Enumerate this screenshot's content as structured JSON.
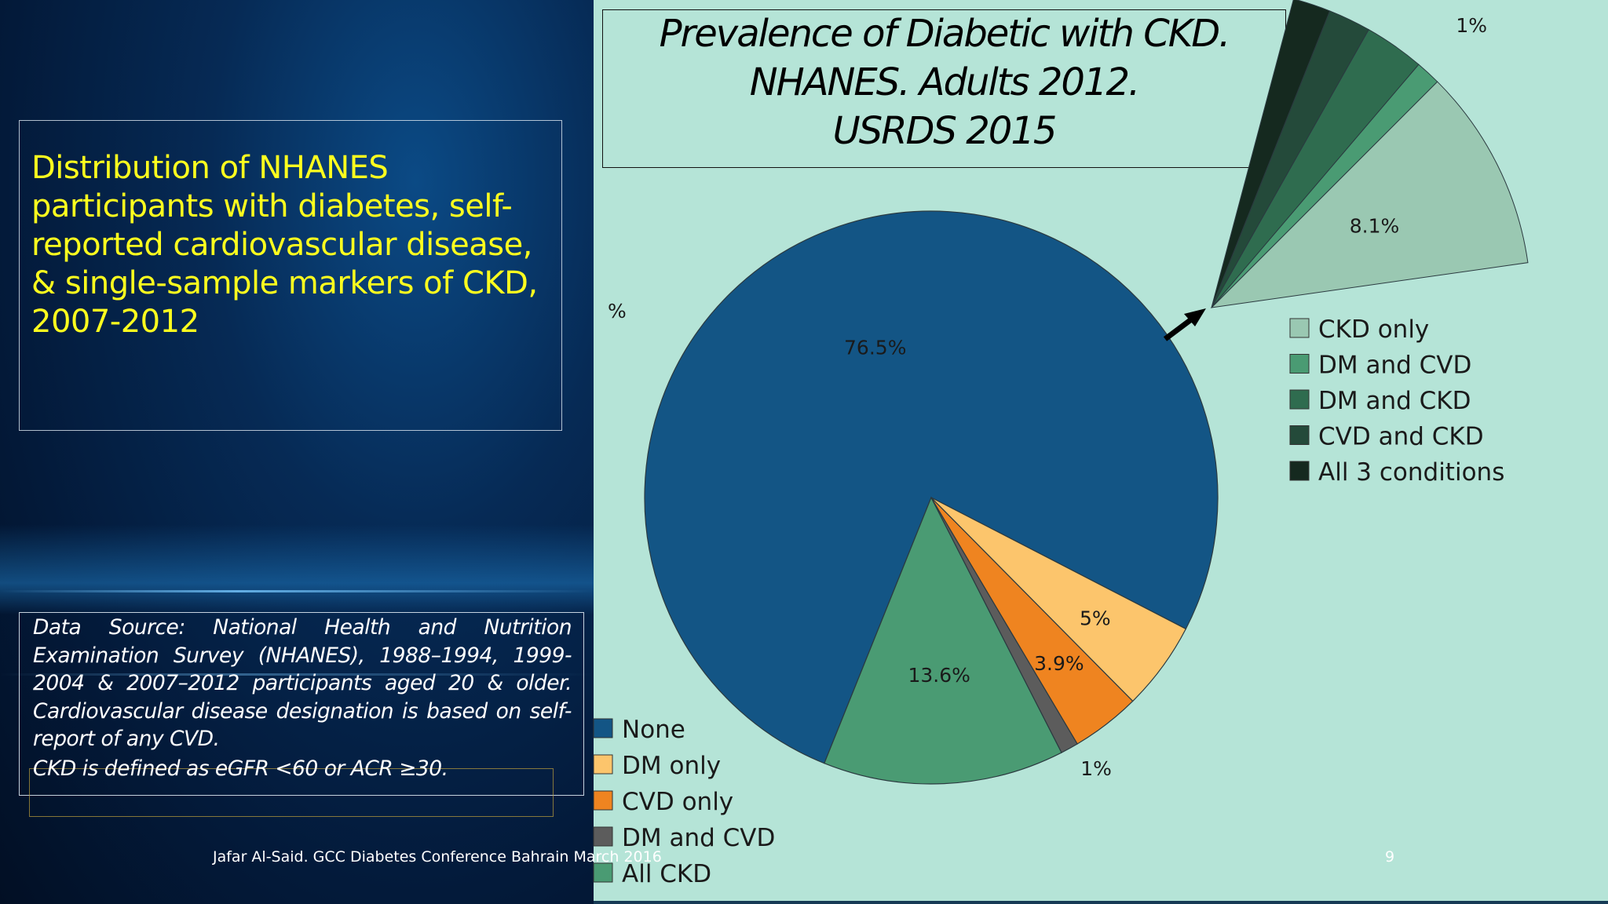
{
  "slide": {
    "subtitle": "Distribution of NHANES participants with diabetes, self-reported cardiovascular disease, & single-sample markers of CKD, 2007-2012",
    "source_note": "Data Source: National Health and Nutrition Examination Survey (NHANES), 1988–1994, 1999-2004 & 2007–2012 participants aged 20 & older. Cardiovascular disease designation is based on self-report of any CVD.",
    "ckd_definition": "CKD is defined as eGFR <60 or ACR ≥30.",
    "footer": "Jafar Al-Said. GCC Diabetes Conference Bahrain March 2016",
    "page_number": "9"
  },
  "chart_data": [
    {
      "type": "pie",
      "title_lines": [
        "Prevalence of Diabetic with CKD.",
        "NHANES. Adults 2012.",
        "USRDS 2015"
      ],
      "unit_label": "%",
      "slices": [
        {
          "name": "None",
          "value": 76.5,
          "label": "76.5%",
          "color": "#135585"
        },
        {
          "name": "All CKD",
          "value": 13.6,
          "label": "13.6%",
          "color": "#4a9b73"
        },
        {
          "name": "DM and CVD",
          "value": 1,
          "label": "1%",
          "color": "#5c5c5c"
        },
        {
          "name": "CVD only",
          "value": 3.9,
          "label": "3.9%",
          "color": "#ef8420"
        },
        {
          "name": "DM only",
          "value": 5,
          "label": "5%",
          "color": "#fcc56c"
        }
      ],
      "legend": {
        "position": "bottom-left",
        "entries": [
          {
            "name": "None",
            "color": "#135585"
          },
          {
            "name": "DM only",
            "color": "#fcc56c"
          },
          {
            "name": "CVD only",
            "color": "#ef8420"
          },
          {
            "name": "DM and CVD",
            "color": "#5c5c5c"
          },
          {
            "name": "All CKD",
            "color": "#4a9b73"
          }
        ]
      }
    },
    {
      "type": "pie",
      "title": "",
      "description_of": "All CKD",
      "slices": [
        {
          "name": "CKD only",
          "value": 8.1,
          "label": "8.1%",
          "color": "#9ac8b2"
        },
        {
          "name": "DM and CVD",
          "value": 1,
          "label": "1%",
          "color": "#4a9b73"
        },
        {
          "name": "DM and CKD",
          "value": 2.4,
          "label": "2.4%",
          "color": "#2f6c4f"
        },
        {
          "name": "CVD and CKD",
          "value": 1.7,
          "label": "1.7%",
          "color": "#244a3a"
        },
        {
          "name": "All 3 conditions",
          "value": 1.5,
          "label": "1.5%",
          "color": "#15291f"
        }
      ],
      "legend": {
        "position": "right",
        "entries": [
          {
            "name": "CKD only",
            "color": "#9ac8b2"
          },
          {
            "name": "DM and CVD",
            "color": "#4a9b73"
          },
          {
            "name": "DM and CKD",
            "color": "#2f6c4f"
          },
          {
            "name": "CVD and CKD",
            "color": "#244a3a"
          },
          {
            "name": "All 3 conditions",
            "color": "#15291f"
          }
        ]
      }
    }
  ]
}
